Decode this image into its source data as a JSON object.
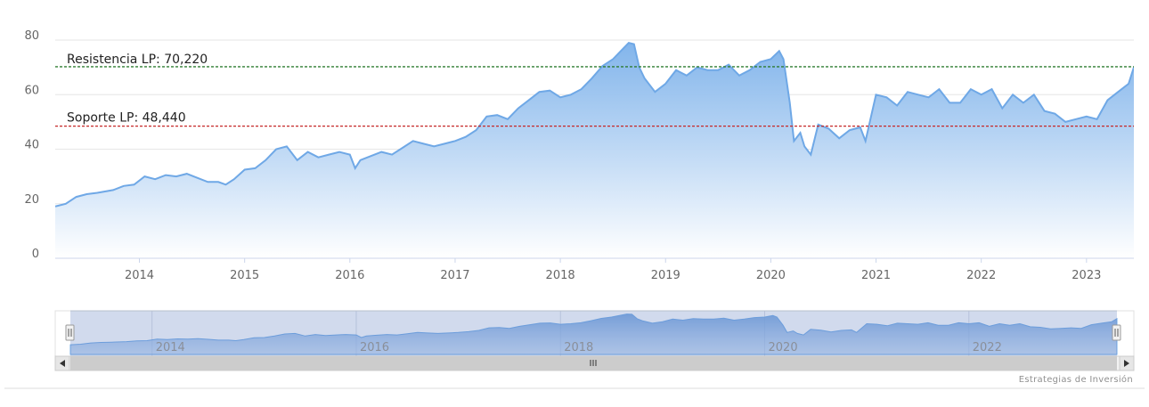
{
  "credits": "Estrategias de Inversión",
  "colors": {
    "area_line": "#6fa8e6",
    "area_top": "#7cb1ea",
    "area_bottom": "#ffffff",
    "resistance": "#2e7d32",
    "support": "#c62828",
    "grid": "#e6e6e6",
    "navigator_mask": "rgba(102,133,194,0.30)",
    "scrollbar_track": "#f2f2f2",
    "scrollbar_thumb": "#cccccc"
  },
  "chart_data": {
    "type": "area",
    "title": "",
    "xlabel": "",
    "ylabel": "",
    "xlim": [
      2013.2,
      2023.45
    ],
    "ylim": [
      0,
      80
    ],
    "grid": true,
    "y_ticks": [
      "0",
      "20",
      "40",
      "60",
      "80"
    ],
    "x_ticks": [
      "2014",
      "2015",
      "2016",
      "2017",
      "2018",
      "2019",
      "2020",
      "2021",
      "2022",
      "2023"
    ],
    "reference_lines": [
      {
        "label": "Resistencia LP: 70,220",
        "value": 70.22,
        "style": "dashed"
      },
      {
        "label": "Soporte LP: 48,440",
        "value": 48.44,
        "style": "dashed"
      }
    ],
    "series": [
      {
        "x": [
          2013.2,
          2013.3,
          2013.4,
          2013.5,
          2013.6,
          2013.75,
          2013.85,
          2013.95,
          2014.05,
          2014.15,
          2014.25,
          2014.35,
          2014.45,
          2014.55,
          2014.65,
          2014.75,
          2014.82,
          2014.9,
          2015.0,
          2015.1,
          2015.2,
          2015.3,
          2015.4,
          2015.5,
          2015.6,
          2015.7,
          2015.8,
          2015.9,
          2016.0,
          2016.05,
          2016.1,
          2016.2,
          2016.3,
          2016.4,
          2016.5,
          2016.6,
          2016.7,
          2016.8,
          2016.9,
          2017.0,
          2017.1,
          2017.2,
          2017.3,
          2017.4,
          2017.5,
          2017.6,
          2017.7,
          2017.8,
          2017.9,
          2018.0,
          2018.1,
          2018.2,
          2018.3,
          2018.4,
          2018.5,
          2018.6,
          2018.65,
          2018.7,
          2018.75,
          2018.8,
          2018.9,
          2019.0,
          2019.1,
          2019.2,
          2019.3,
          2019.4,
          2019.5,
          2019.6,
          2019.7,
          2019.8,
          2019.9,
          2020.0,
          2020.08,
          2020.12,
          2020.18,
          2020.22,
          2020.28,
          2020.32,
          2020.38,
          2020.45,
          2020.55,
          2020.65,
          2020.75,
          2020.85,
          2020.9,
          2021.0,
          2021.1,
          2021.2,
          2021.3,
          2021.4,
          2021.5,
          2021.6,
          2021.7,
          2021.8,
          2021.9,
          2022.0,
          2022.1,
          2022.2,
          2022.3,
          2022.4,
          2022.5,
          2022.6,
          2022.7,
          2022.8,
          2022.9,
          2023.0,
          2023.1,
          2023.2,
          2023.3,
          2023.4,
          2023.45
        ],
        "y": [
          19,
          20,
          22.5,
          23.5,
          24,
          25,
          26.5,
          27,
          30,
          29,
          30.5,
          30,
          31,
          29.5,
          28,
          28,
          27,
          29,
          32.5,
          33,
          36,
          40,
          41,
          36,
          39,
          37,
          38,
          39,
          38,
          33,
          36,
          37.5,
          39,
          38,
          40.5,
          43,
          42,
          41,
          42,
          43,
          44.5,
          47,
          52,
          52.5,
          51,
          55,
          58,
          61,
          61.5,
          59,
          60,
          62,
          66,
          70.5,
          73,
          77,
          79,
          78.5,
          70,
          66,
          61,
          64,
          69,
          67,
          70,
          69,
          69,
          71,
          67,
          69,
          72,
          73,
          76,
          73,
          57,
          43,
          46,
          41,
          38,
          49,
          47.5,
          44,
          47,
          48,
          43,
          60,
          59,
          56,
          61,
          60,
          59,
          62,
          57,
          57,
          62,
          60,
          62,
          55,
          60,
          57,
          60,
          54,
          53,
          50,
          51,
          52,
          51,
          58,
          61,
          64,
          70
        ]
      }
    ]
  }
}
